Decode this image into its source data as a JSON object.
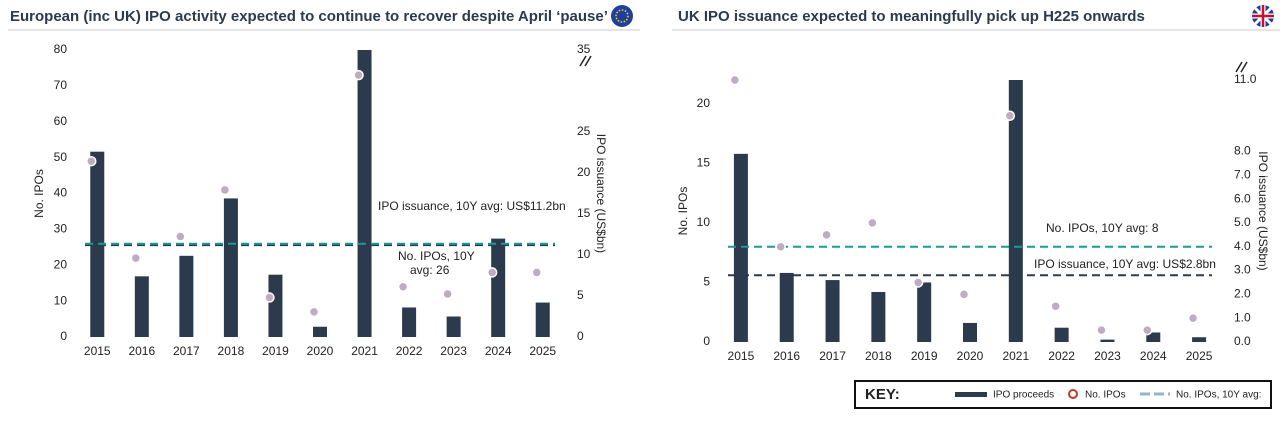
{
  "chart_data": [
    {
      "type": "bar-dot",
      "title": "European (inc UK) IPO activity expected to continue to recover despite April ‘pause’",
      "y_label": "No. IPOs",
      "y2_label": "IPO issuance (US$bn)",
      "categories": [
        "2015",
        "2016",
        "2017",
        "2018",
        "2019",
        "2020",
        "2021",
        "2022",
        "2023",
        "2024",
        "2025"
      ],
      "series": [
        {
          "mark": "bar",
          "axis": "y2",
          "color": "#2b3a4d",
          "values": [
            22.6,
            7.4,
            9.9,
            16.9,
            7.6,
            1.25,
            35,
            3.6,
            2.5,
            12.0,
            4.2
          ]
        },
        {
          "mark": "dot",
          "axis": "y",
          "color": "#bfacc4",
          "values": [
            49,
            22,
            28,
            41,
            11,
            7,
            73,
            14,
            12,
            18,
            18
          ]
        }
      ],
      "reference_lines": [
        {
          "axis": "y2",
          "value": 11.2,
          "color": "#2b3a4d",
          "label": [
            "IPO issuance, 10Y avg: US$11.2bn"
          ]
        },
        {
          "axis": "y",
          "value": 26,
          "color": "#1a9a9a",
          "label": [
            "No. IPOs, 10Y",
            "avg: 26"
          ]
        }
      ],
      "ylim": [
        0,
        80
      ],
      "yticks": [
        0,
        10,
        20,
        30,
        40,
        50,
        60,
        70,
        80
      ],
      "y2lim": [
        0,
        35
      ],
      "y2ticks": [
        0,
        5,
        10,
        15,
        20,
        25,
        35
      ]
    },
    {
      "type": "bar-dot",
      "title": "UK IPO issuance expected to meaningfully pick up H225 onwards",
      "y_label": "No. IPOs",
      "y2_label": "IPO issuance (US$bn)",
      "categories": [
        "2015",
        "2016",
        "2017",
        "2018",
        "2019",
        "2020",
        "2021",
        "2022",
        "2023",
        "2024",
        "2025"
      ],
      "series": [
        {
          "mark": "bar",
          "axis": "y2",
          "color": "#2b3a4d",
          "values": [
            7.9,
            2.9,
            2.6,
            2.1,
            2.5,
            0.8,
            11,
            0.6,
            0.1,
            0.4,
            0.2
          ]
        },
        {
          "mark": "dot",
          "axis": "y",
          "color": "#bfacc4",
          "values": [
            22,
            8,
            9,
            10,
            5,
            4,
            19,
            3,
            1,
            1,
            2
          ]
        }
      ],
      "reference_lines": [
        {
          "axis": "y",
          "value": 8,
          "color": "#1a9a9a",
          "label": [
            "No. IPOs, 10Y avg: 8"
          ]
        },
        {
          "axis": "y2",
          "value": 2.8,
          "color": "#2b3a4d",
          "label": [
            "IPO issuance, 10Y avg: US$2.8bn"
          ]
        }
      ],
      "ylim": [
        0,
        22
      ],
      "yticks": [
        0,
        5,
        10,
        15,
        20
      ],
      "y2lim": [
        0,
        11
      ],
      "y2ticks": [
        {
          "value": 0,
          "label": "0.0"
        },
        {
          "value": 1,
          "label": "1.0"
        },
        {
          "value": 2,
          "label": "2.0"
        },
        {
          "value": 3,
          "label": "3.0"
        },
        {
          "value": 4,
          "label": "4.0"
        },
        {
          "value": 5,
          "label": "5.0"
        },
        {
          "value": 6,
          "label": "6.0"
        },
        {
          "value": 7,
          "label": "7.0"
        },
        {
          "value": 8,
          "label": "8.0"
        },
        {
          "value": 11,
          "label": "11.0"
        }
      ]
    }
  ],
  "key": {
    "title": "KEY:",
    "items": [
      "IPO proceeds",
      "No. IPOs",
      "No. IPOs, 10Y avg:"
    ]
  }
}
